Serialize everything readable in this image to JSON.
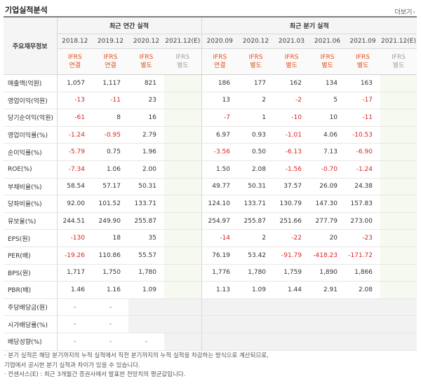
{
  "title": "기업실적분석",
  "more_label": "더보기",
  "header": {
    "row_label": "주요재무정보",
    "annual_group": "최근 연간 실적",
    "quarter_group": "최근 분기 실적",
    "annual_periods": [
      "2018.12",
      "2019.12",
      "2020.12",
      "2021.12(E)"
    ],
    "quarter_periods": [
      "2020.09",
      "2020.12",
      "2021.03",
      "2021.06",
      "2021.09",
      "2021.12(E)"
    ],
    "annual_basis": [
      [
        "IFRS",
        "연결"
      ],
      [
        "IFRS",
        "연결"
      ],
      [
        "IFRS",
        "별도"
      ],
      [
        "IFRS",
        "별도"
      ]
    ],
    "quarter_basis": [
      [
        "IFRS",
        "연결"
      ],
      [
        "IFRS",
        "별도"
      ],
      [
        "IFRS",
        "별도"
      ],
      [
        "IFRS",
        "별도"
      ],
      [
        "IFRS",
        "별도"
      ],
      [
        "IFRS",
        "별도"
      ]
    ]
  },
  "rows": [
    {
      "label": "매출액(억원)",
      "annual": [
        "1,057",
        "1,117",
        "821",
        ""
      ],
      "quarter": [
        "186",
        "177",
        "162",
        "134",
        "163",
        ""
      ]
    },
    {
      "label": "영업이익(억원)",
      "annual": [
        "-13",
        "-11",
        "23",
        ""
      ],
      "quarter": [
        "13",
        "2",
        "-2",
        "5",
        "-17",
        ""
      ]
    },
    {
      "label": "당기순이익(억원)",
      "annual": [
        "-61",
        "8",
        "16",
        ""
      ],
      "quarter": [
        "-7",
        "1",
        "-10",
        "10",
        "-11",
        ""
      ]
    },
    {
      "label": "영업이익률(%)",
      "annual": [
        "-1.24",
        "-0.95",
        "2.79",
        ""
      ],
      "quarter": [
        "6.97",
        "0.93",
        "-1.01",
        "4.06",
        "-10.53",
        ""
      ]
    },
    {
      "label": "순이익률(%)",
      "annual": [
        "-5.79",
        "0.75",
        "1.96",
        ""
      ],
      "quarter": [
        "-3.56",
        "0.50",
        "-6.13",
        "7.13",
        "-6.90",
        ""
      ]
    },
    {
      "label": "ROE(%)",
      "annual": [
        "-7.34",
        "1.06",
        "2.00",
        ""
      ],
      "quarter": [
        "1.50",
        "2.08",
        "-1.56",
        "-0.70",
        "-1.24",
        ""
      ]
    },
    {
      "label": "부채비율(%)",
      "annual": [
        "58.54",
        "57.17",
        "50.31",
        ""
      ],
      "quarter": [
        "49.77",
        "50.31",
        "37.57",
        "26.09",
        "24.38",
        ""
      ]
    },
    {
      "label": "당좌비율(%)",
      "annual": [
        "92.00",
        "101.52",
        "133.71",
        ""
      ],
      "quarter": [
        "124.10",
        "133.71",
        "130.79",
        "147.30",
        "157.83",
        ""
      ]
    },
    {
      "label": "유보율(%)",
      "annual": [
        "244.51",
        "249.90",
        "255.87",
        ""
      ],
      "quarter": [
        "254.97",
        "255.87",
        "251.66",
        "277.79",
        "273.00",
        ""
      ]
    },
    {
      "label": "EPS(원)",
      "annual": [
        "-130",
        "18",
        "35",
        ""
      ],
      "quarter": [
        "-14",
        "2",
        "-22",
        "20",
        "-23",
        ""
      ]
    },
    {
      "label": "PER(배)",
      "annual": [
        "-19.26",
        "110.86",
        "55.57",
        ""
      ],
      "quarter": [
        "76.19",
        "53.42",
        "-91.79",
        "-418.23",
        "-171.72",
        ""
      ]
    },
    {
      "label": "BPS(원)",
      "annual": [
        "1,717",
        "1,750",
        "1,780",
        ""
      ],
      "quarter": [
        "1,776",
        "1,780",
        "1,759",
        "1,890",
        "1,866",
        ""
      ]
    },
    {
      "label": "PBR(배)",
      "annual": [
        "1.46",
        "1.16",
        "1.09",
        ""
      ],
      "quarter": [
        "1.13",
        "1.09",
        "1.44",
        "2.91",
        "2.08",
        ""
      ]
    },
    {
      "label": "주당배당금(원)",
      "annual": [
        "-",
        "-",
        "",
        ""
      ],
      "quarter": [
        "",
        "",
        "",
        "",
        "",
        ""
      ]
    },
    {
      "label": "시가배당률(%)",
      "annual": [
        "-",
        "-",
        "",
        ""
      ],
      "quarter": [
        "",
        "",
        "",
        "",
        "",
        ""
      ]
    },
    {
      "label": "배당성향(%)",
      "annual": [
        "-",
        "-",
        "-",
        ""
      ],
      "quarter": [
        "",
        "",
        "",
        "",
        "",
        ""
      ]
    }
  ],
  "notes": [
    "· 분기 실적은 해당 분기까지의 누적 실적에서 직전 분기까지의 누적 실적을 차감하는 방식으로 계산되므로,",
    "  기업에서 공시한 분기 실적과 차이가 있을 수 있습니다.",
    "· 컨센서스(E) : 최근 3개월간 증권사에서 발표한 전망치의 평균값입니다."
  ],
  "colors": {
    "ifrs": "#e0531a",
    "negative": "#dd2222",
    "estimate_bg": "#f5f9ef"
  }
}
